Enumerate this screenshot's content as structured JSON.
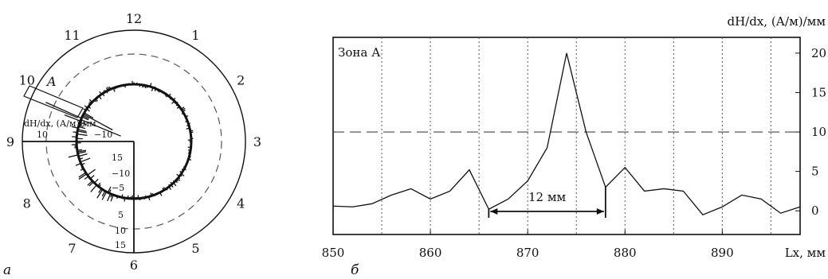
{
  "chart_data": [
    {
      "type": "polar",
      "panel_label": "а",
      "clock_labels": [
        "12",
        "1",
        "2",
        "3",
        "4",
        "5",
        "6",
        "7",
        "8",
        "9",
        "10",
        "11"
      ],
      "sector_label": "A",
      "sector_clock": 10,
      "axis_label": "dH/dx, (А/м)/мм",
      "radial_left_ticks": [
        "10",
        "−10"
      ],
      "radial_down_ticks": [
        "15",
        "−10",
        "−5",
        "5",
        "10",
        "15"
      ],
      "grid": true,
      "threshold_circle": 10
    },
    {
      "type": "line",
      "panel_label": "б",
      "zone_label": "Зона А",
      "ylabel": "dH/dx, (А/м)/мм",
      "xlabel": "Lx, мм",
      "x_ticks": [
        850,
        860,
        870,
        880,
        890
      ],
      "y_ticks": [
        0,
        5,
        10,
        15,
        20
      ],
      "xlim": [
        850,
        898
      ],
      "ylim": [
        -3,
        22
      ],
      "grid": "vertical dotted every 5",
      "threshold": 10,
      "annotation": {
        "text": "12 мм",
        "x_start": 866,
        "x_end": 878
      },
      "series": [
        {
          "x": [
            850,
            852,
            854,
            856,
            858,
            860,
            862,
            864,
            866,
            868,
            870,
            872,
            874,
            876,
            878,
            880,
            882,
            884,
            886,
            888,
            890,
            892,
            894,
            896,
            898
          ],
          "y": [
            0.6,
            0.5,
            0.9,
            2.0,
            2.8,
            1.5,
            2.5,
            5.2,
            0.2,
            1.5,
            3.8,
            8.0,
            20.0,
            10.0,
            3.0,
            5.5,
            2.5,
            2.8,
            2.5,
            -0.5,
            0.5,
            2.0,
            1.5,
            -0.3,
            0.5
          ]
        }
      ]
    }
  ]
}
